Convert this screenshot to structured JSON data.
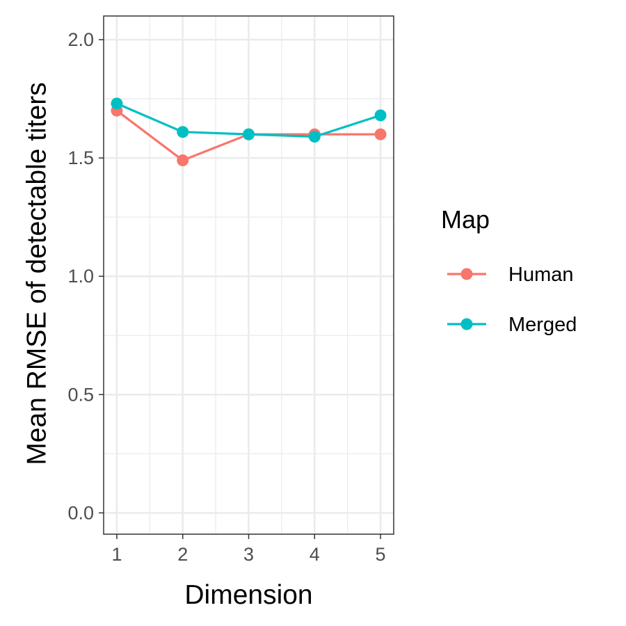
{
  "chart_data": {
    "type": "line",
    "xlabel": "Dimension",
    "ylabel": "Mean RMSE of detectable titers",
    "x": [
      1,
      2,
      3,
      4,
      5
    ],
    "x_ticks": [
      "1",
      "2",
      "3",
      "4",
      "5"
    ],
    "y_ticks": [
      "0.0",
      "0.5",
      "1.0",
      "1.5",
      "2.0"
    ],
    "xlim": [
      0.8,
      5.2
    ],
    "ylim": [
      -0.09,
      2.1
    ],
    "grid": true,
    "legend": {
      "title": "Map",
      "position": "right"
    },
    "series": [
      {
        "name": "Human",
        "color": "#F8766D",
        "values": [
          1.7,
          1.49,
          1.6,
          1.6,
          1.6
        ]
      },
      {
        "name": "Merged",
        "color": "#00BFC4",
        "values": [
          1.73,
          1.61,
          1.6,
          1.59,
          1.68
        ]
      }
    ]
  }
}
